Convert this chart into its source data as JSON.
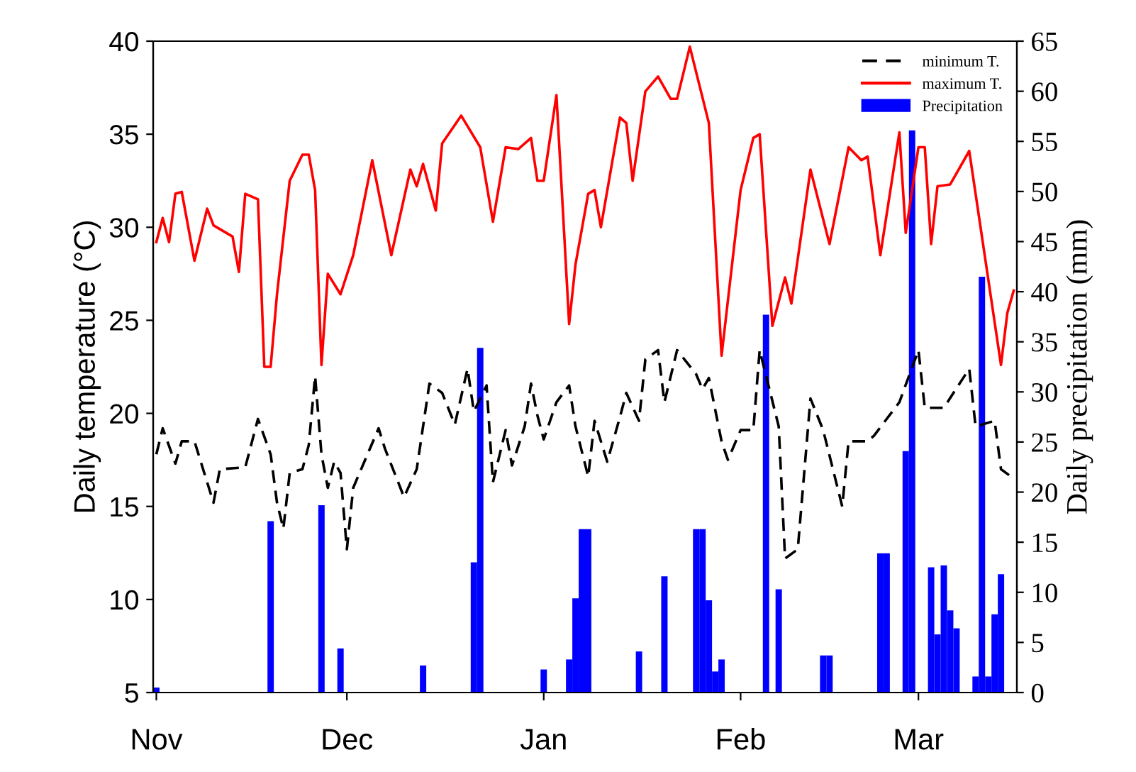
{
  "chart_data": {
    "type": "line",
    "ylabel": "Daily temperature (°C)",
    "y2label": "Daily precipitation (mm)",
    "categories": [
      "Nov",
      null,
      null,
      null,
      null,
      null,
      null,
      null,
      null,
      null,
      null,
      null,
      null,
      null,
      null,
      null,
      null,
      null,
      null,
      null,
      null,
      null,
      null,
      null,
      null,
      null,
      null,
      null,
      null,
      null,
      "Dec",
      null,
      null,
      null,
      null,
      null,
      null,
      null,
      null,
      null,
      null,
      null,
      null,
      null,
      null,
      null,
      null,
      null,
      null,
      null,
      null,
      null,
      null,
      null,
      null,
      null,
      null,
      null,
      null,
      null,
      null,
      "Jan",
      null,
      null,
      null,
      null,
      null,
      null,
      null,
      null,
      null,
      null,
      null,
      null,
      null,
      null,
      null,
      null,
      null,
      null,
      null,
      null,
      null,
      null,
      null,
      null,
      null,
      null,
      null,
      null,
      null,
      null,
      "Feb",
      null,
      null,
      null,
      null,
      null,
      null,
      null,
      null,
      null,
      null,
      null,
      null,
      null,
      null,
      null,
      null,
      null,
      null,
      null,
      null,
      null,
      null,
      null,
      null,
      null,
      null,
      null,
      "Mar",
      null,
      null,
      null,
      null,
      null,
      null,
      null,
      null,
      null,
      null,
      null,
      null,
      null,
      null,
      null
    ],
    "ylim": [
      5,
      40
    ],
    "yticks": [
      5,
      10,
      15,
      20,
      25,
      30,
      35,
      40
    ],
    "y2lim": [
      0,
      65
    ],
    "y2ticks": [
      0,
      5,
      10,
      15,
      20,
      25,
      30,
      35,
      40,
      45,
      50,
      55,
      60,
      65
    ],
    "grid": false,
    "legend": "top right",
    "series": [
      {
        "name": "minimum T.",
        "color": "#000000",
        "line_style": "dashed",
        "values": [
          17.8,
          19.2,
          null,
          17.3,
          18.5,
          null,
          18.5,
          null,
          null,
          15.2,
          17.0,
          null,
          null,
          null,
          17.1,
          null,
          19.7,
          null,
          17.8,
          15.2,
          13.8,
          16.8,
          null,
          17.0,
          18.3,
          22.0,
          17.8,
          16.0,
          17.4,
          16.8,
          12.7,
          16.0,
          16.8,
          null,
          null,
          19.2,
          18.1,
          null,
          null,
          15.5,
          null,
          17.0,
          null,
          21.6,
          null,
          21.1,
          null,
          19.4,
          null,
          22.4,
          20.1,
          null,
          21.5,
          16.3,
          null,
          19.1,
          17.2,
          null,
          19.3,
          21.6,
          19.9,
          18.6,
          null,
          20.6,
          null,
          21.5,
          19.3,
          null,
          16.6,
          19.6,
          null,
          17.4,
          null,
          19.8,
          21.1,
          null,
          19.6,
          22.9,
          null,
          23.4,
          20.6,
          null,
          23.4,
          null,
          null,
          22.1,
          21.3,
          21.9,
          null,
          18.5,
          17.5,
          null,
          19.1,
          null,
          19.1,
          23.4,
          null,
          null,
          19.3,
          12.2,
          null,
          12.7,
          null,
          20.8,
          null,
          19.1,
          null,
          null,
          15.0,
          18.5,
          null,
          null,
          18.5,
          18.8,
          null,
          null,
          null,
          20.6,
          null,
          null,
          23.4,
          20.3,
          null,
          null,
          20.3,
          null,
          null,
          null,
          22.4,
          19.3,
          null,
          null,
          19.6,
          17.0,
          null,
          16.5
        ]
      },
      {
        "name": "maximum T.",
        "color": "#ff0000",
        "line_style": "solid",
        "values": [
          29.2,
          30.5,
          29.2,
          31.8,
          31.9,
          null,
          28.2,
          null,
          31.0,
          30.1,
          null,
          null,
          29.5,
          27.6,
          31.8,
          null,
          31.5,
          22.5,
          22.5,
          26.4,
          null,
          32.5,
          null,
          33.9,
          33.9,
          32.0,
          22.6,
          27.5,
          null,
          26.4,
          null,
          28.5,
          null,
          null,
          33.6,
          null,
          null,
          28.5,
          null,
          null,
          33.1,
          32.2,
          33.4,
          null,
          30.9,
          34.5,
          null,
          null,
          36.0,
          null,
          null,
          34.3,
          null,
          30.3,
          null,
          34.3,
          null,
          34.2,
          null,
          34.8,
          32.5,
          32.5,
          null,
          37.1,
          31.0,
          24.8,
          28.0,
          null,
          31.8,
          32.0,
          30.0,
          null,
          null,
          35.9,
          35.6,
          32.5,
          null,
          37.3,
          null,
          38.1,
          null,
          36.9,
          36.9,
          null,
          39.7,
          null,
          null,
          35.6,
          null,
          23.1,
          null,
          null,
          32.0,
          null,
          34.8,
          35.0,
          null,
          24.7,
          null,
          27.3,
          25.9,
          null,
          null,
          33.1,
          null,
          null,
          29.1,
          null,
          null,
          34.3,
          null,
          33.6,
          33.8,
          null,
          28.5,
          null,
          null,
          35.1,
          29.7,
          null,
          34.3,
          34.3,
          29.1,
          32.2,
          null,
          32.3,
          null,
          null,
          34.1,
          null,
          29.5,
          null,
          null,
          22.6,
          25.4,
          26.6
        ]
      },
      {
        "name": "Precipitation",
        "type": "bar",
        "axis": "y2",
        "color": "#0000ff",
        "values": [
          0.5,
          null,
          null,
          null,
          null,
          null,
          null,
          null,
          null,
          null,
          null,
          null,
          null,
          null,
          null,
          null,
          null,
          null,
          17.1,
          null,
          null,
          null,
          null,
          null,
          null,
          null,
          18.7,
          null,
          null,
          4.4,
          null,
          null,
          null,
          null,
          null,
          null,
          null,
          null,
          null,
          null,
          null,
          null,
          2.7,
          null,
          null,
          null,
          null,
          null,
          null,
          null,
          13.0,
          34.4,
          null,
          null,
          null,
          null,
          null,
          null,
          null,
          null,
          null,
          2.3,
          null,
          null,
          null,
          3.3,
          9.4,
          16.3,
          16.3,
          null,
          null,
          null,
          null,
          null,
          null,
          null,
          4.1,
          null,
          null,
          null,
          11.6,
          null,
          null,
          null,
          null,
          16.3,
          16.3,
          9.2,
          2.1,
          3.3,
          null,
          null,
          null,
          null,
          null,
          null,
          37.7,
          null,
          10.3,
          null,
          null,
          null,
          null,
          null,
          null,
          3.7,
          3.7,
          null,
          null,
          null,
          null,
          null,
          null,
          null,
          13.9,
          13.9,
          null,
          null,
          24.1,
          56.1,
          null,
          null,
          12.5,
          5.8,
          12.7,
          8.2,
          6.4,
          null,
          null,
          1.6,
          41.5,
          1.6,
          7.8,
          11.8,
          null,
          null
        ]
      }
    ]
  }
}
